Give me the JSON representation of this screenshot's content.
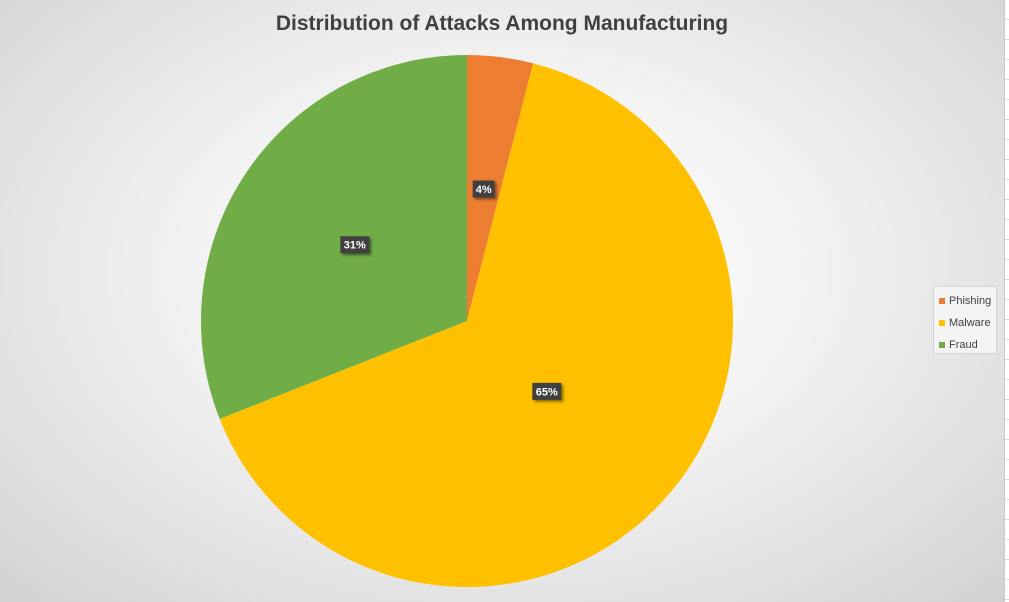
{
  "chart_data": {
    "type": "pie",
    "title": "Distribution of Attacks Among Manufacturing",
    "categories": [
      "Phishing",
      "Malware",
      "Fraud"
    ],
    "values": [
      4,
      65,
      31
    ],
    "data_labels": [
      "4%",
      "65%",
      "31%"
    ],
    "colors": [
      "#ED7D31",
      "#FFC000",
      "#70AD47"
    ],
    "legend_position": "right"
  }
}
